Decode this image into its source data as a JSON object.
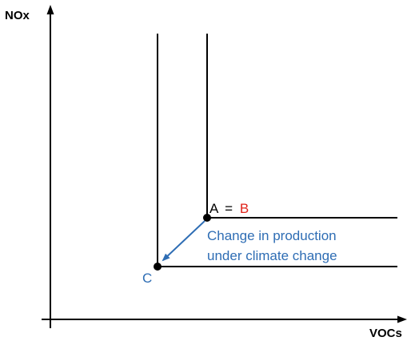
{
  "axes": {
    "y_label": "NOx",
    "x_label": "VOCs"
  },
  "points": {
    "a_label": "A",
    "eq_sign": "=",
    "b_label": "B",
    "c_label": "C"
  },
  "annotation": {
    "line1": "Change in production",
    "line2": "under climate change"
  },
  "colors": {
    "axis": "#000000",
    "b_label": "#e0241b",
    "annotation": "#2e6db4",
    "arrow": "#2e6db4"
  }
}
